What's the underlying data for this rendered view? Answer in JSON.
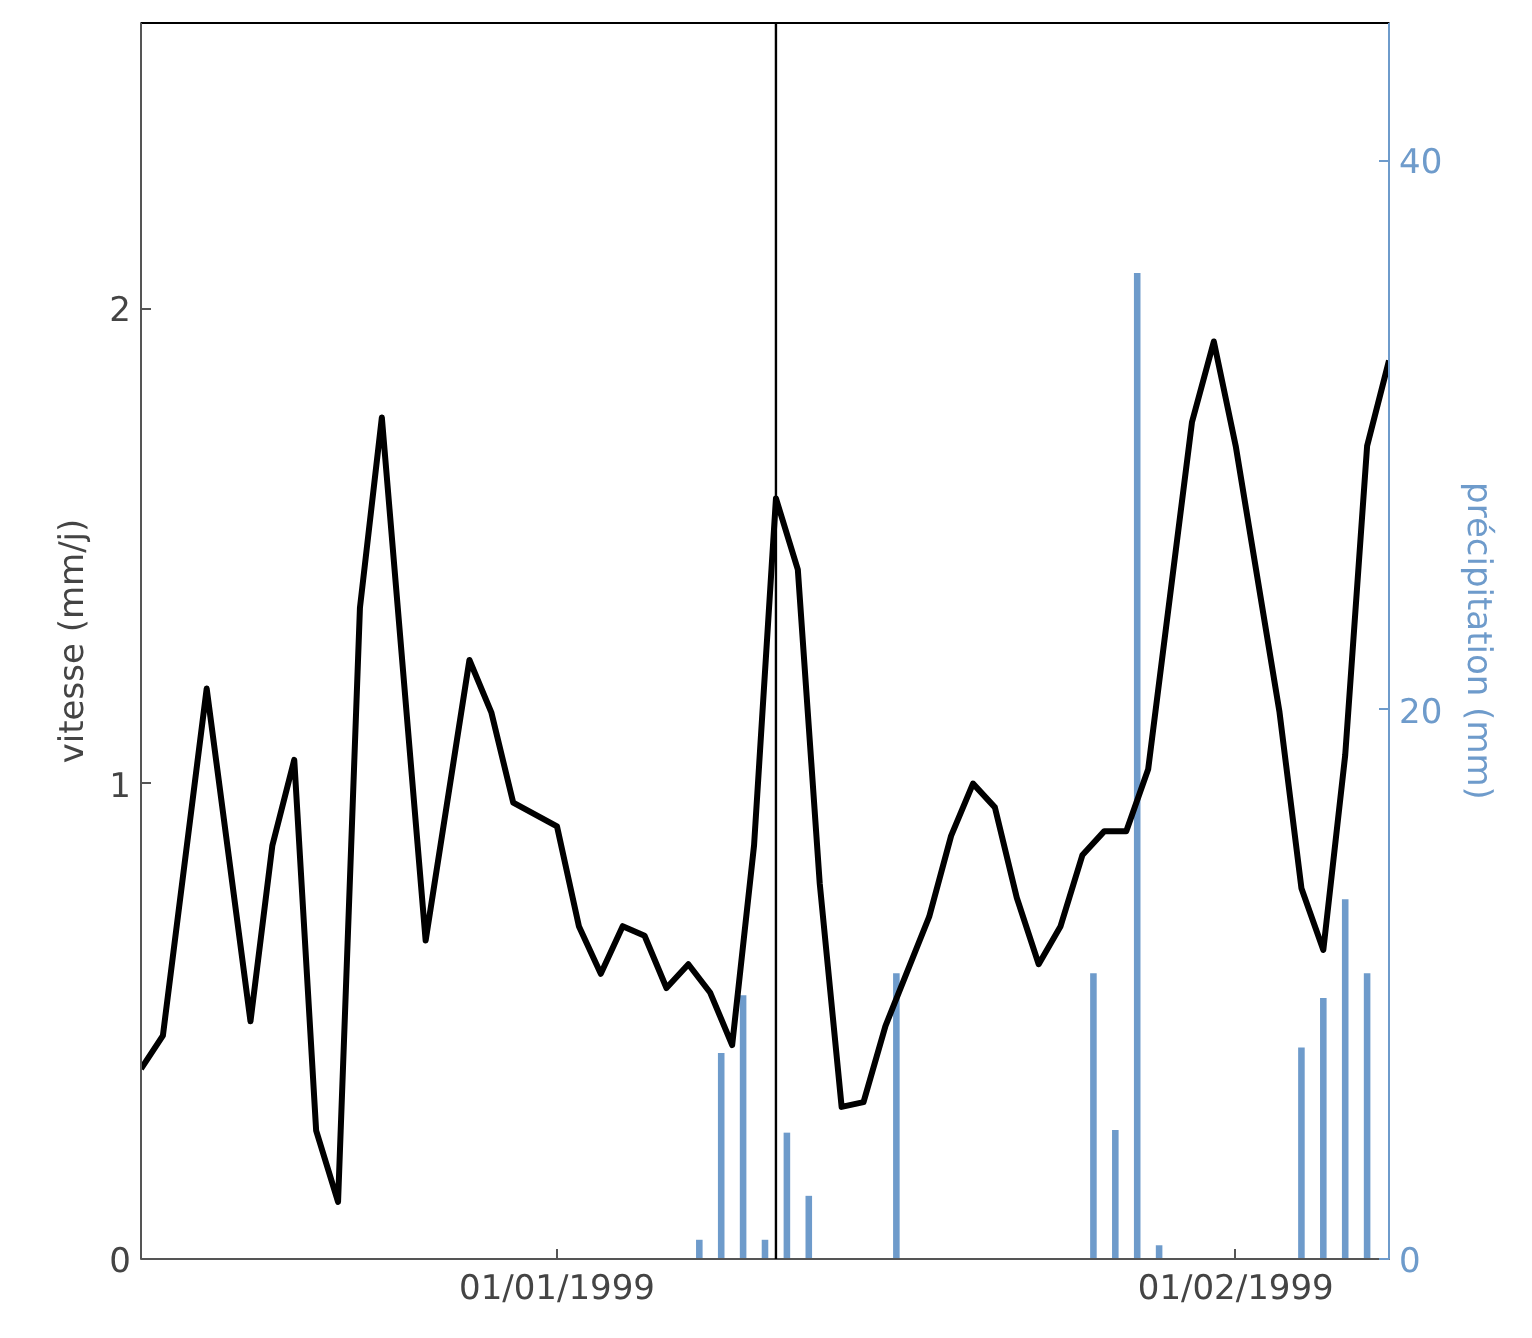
{
  "chart_data": {
    "type": "line",
    "ylabel": "vitesse (mm/j)",
    "y2label": "précipitation (mm)",
    "xlim": [
      "1998-12-13",
      "1999-02-08"
    ],
    "xticks": [
      {
        "value": "1999-01-01",
        "label": "01/01/1999"
      },
      {
        "value": "1999-02-01",
        "label": "01/02/1999"
      }
    ],
    "ylim": [
      0,
      2.6
    ],
    "yticks": [
      0,
      1,
      2
    ],
    "y2lim": [
      0,
      45
    ],
    "y2ticks": [
      0,
      20,
      40
    ],
    "grid": false,
    "ref_lines": [
      {
        "axis": "x",
        "value": "1999-01-11",
        "color": "#000000"
      }
    ],
    "series": [
      {
        "type": "bar",
        "axis": "y2",
        "color": "#6e9bcb",
        "x": [
          "1999-01-07T12:00",
          "1999-01-08T12:00",
          "1999-01-09T12:00",
          "1999-01-10T12:00",
          "1999-01-11T12:00",
          "1999-01-12T12:00",
          "1999-01-16T12:00",
          "1999-01-25T12:00",
          "1999-01-26T12:00",
          "1999-01-27T12:00",
          "1999-01-28T12:00",
          "1999-02-04",
          "1999-02-05",
          "1999-02-06",
          "1999-02-07"
        ],
        "values": [
          0.7,
          7.5,
          9.6,
          0.7,
          4.6,
          2.3,
          10.4,
          10.4,
          4.7,
          35.9,
          0.5,
          7.7,
          9.5,
          13.1,
          10.4
        ]
      },
      {
        "color": "#000000",
        "x": [
          "1998-12-13",
          "1998-12-14",
          "1998-12-16",
          "1998-12-18",
          "1998-12-19",
          "1998-12-20",
          "1998-12-21",
          "1998-12-22",
          "1998-12-23",
          "1998-12-24",
          "1998-12-26",
          "1998-12-28",
          "1998-12-29",
          "1998-12-30",
          "1999-01-01",
          "1999-01-02",
          "1999-01-03",
          "1999-01-04",
          "1999-01-05",
          "1999-01-06",
          "1999-01-07",
          "1999-01-08",
          "1999-01-09",
          "1999-01-10",
          "1999-01-11",
          "1999-01-12",
          "1999-01-13",
          "1999-01-14",
          "1999-01-15",
          "1999-01-16",
          "1999-01-18",
          "1999-01-19",
          "1999-01-20",
          "1999-01-21",
          "1999-01-22",
          "1999-01-23",
          "1999-01-24",
          "1999-01-25",
          "1999-01-26",
          "1999-01-27",
          "1999-01-28",
          "1999-01-30",
          "1999-01-31",
          "1999-02-01",
          "1999-02-03",
          "1999-02-04",
          "1999-02-05",
          "1999-02-06",
          "1999-02-07",
          "1999-02-08"
        ],
        "values": [
          0.4,
          0.47,
          1.2,
          0.5,
          0.87,
          1.05,
          0.27,
          0.12,
          1.37,
          1.77,
          0.67,
          1.26,
          1.15,
          0.96,
          0.91,
          0.7,
          0.6,
          0.7,
          0.68,
          0.57,
          0.62,
          0.56,
          0.45,
          0.87,
          1.6,
          1.45,
          0.79,
          0.32,
          0.33,
          0.49,
          0.72,
          0.89,
          1.0,
          0.95,
          0.76,
          0.62,
          0.7,
          0.85,
          0.9,
          0.9,
          1.03,
          1.76,
          1.93,
          1.71,
          1.15,
          0.78,
          0.65,
          1.06,
          1.71,
          1.89
        ]
      }
    ]
  }
}
